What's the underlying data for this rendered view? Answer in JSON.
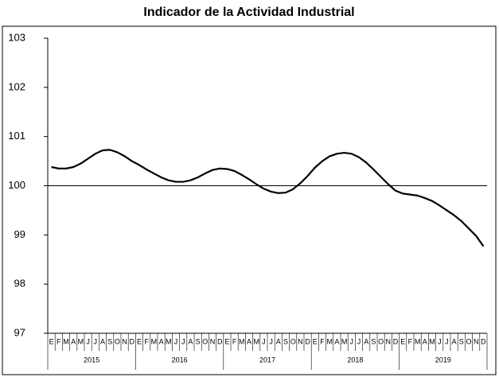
{
  "chart_data": {
    "type": "line",
    "title": "Indicador de la Actividad Industrial",
    "categories": [
      "E",
      "F",
      "M",
      "A",
      "M",
      "J",
      "J",
      "A",
      "S",
      "O",
      "N",
      "D",
      "E",
      "F",
      "M",
      "A",
      "M",
      "J",
      "J",
      "A",
      "S",
      "O",
      "N",
      "D",
      "E",
      "F",
      "M",
      "A",
      "M",
      "J",
      "J",
      "A",
      "S",
      "O",
      "N",
      "D",
      "E",
      "F",
      "M",
      "A",
      "M",
      "J",
      "J",
      "A",
      "S",
      "O",
      "N",
      "D",
      "E",
      "F",
      "M",
      "A",
      "M",
      "J",
      "J",
      "A",
      "S",
      "O",
      "N",
      "D"
    ],
    "year_labels": [
      "2015",
      "2016",
      "2017",
      "2018",
      "2019"
    ],
    "values": [
      100.38,
      100.35,
      100.35,
      100.38,
      100.45,
      100.55,
      100.65,
      100.72,
      100.73,
      100.68,
      100.6,
      100.5,
      100.42,
      100.33,
      100.25,
      100.17,
      100.11,
      100.08,
      100.08,
      100.11,
      100.17,
      100.25,
      100.32,
      100.35,
      100.34,
      100.3,
      100.22,
      100.13,
      100.03,
      99.94,
      99.88,
      99.85,
      99.86,
      99.93,
      100.05,
      100.2,
      100.37,
      100.5,
      100.6,
      100.65,
      100.67,
      100.65,
      100.58,
      100.47,
      100.33,
      100.18,
      100.03,
      99.9,
      99.84,
      99.82,
      99.8,
      99.75,
      99.69,
      99.6,
      99.5,
      99.4,
      99.28,
      99.13,
      98.98,
      98.77
    ],
    "color": "#000000",
    "hline": 100,
    "ylim": [
      97,
      103
    ],
    "yticks": [
      97,
      98,
      99,
      100,
      101,
      102,
      103
    ],
    "grid": false
  }
}
